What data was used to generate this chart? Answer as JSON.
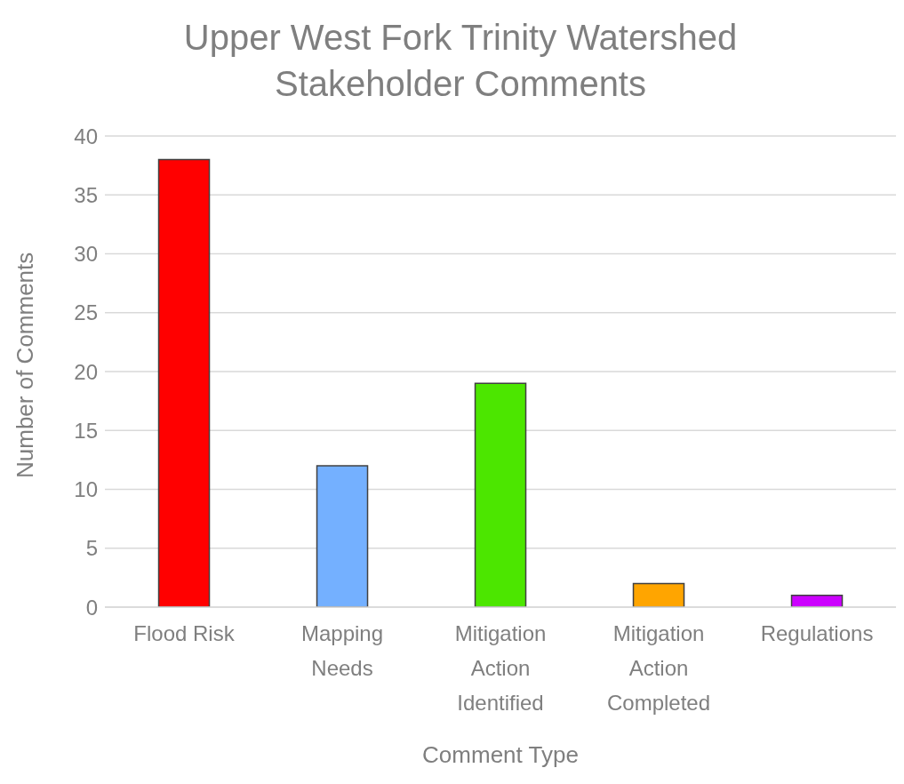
{
  "chart_data": {
    "type": "bar",
    "title": "Upper West Fork Trinity Watershed Stakeholder Comments",
    "xlabel": "Comment Type",
    "ylabel": "Number of Comments",
    "categories": [
      "Flood Risk",
      "Mapping Needs",
      "Mitigation Action Identified",
      "Mitigation Action Completed",
      "Regulations"
    ],
    "values": [
      38,
      12,
      19,
      2,
      1
    ],
    "colors": [
      "#ff0000",
      "#74b0ff",
      "#4ce600",
      "#ffa500",
      "#cc00ff"
    ],
    "ylim": [
      0,
      40
    ],
    "yticks": [
      0,
      5,
      10,
      15,
      20,
      25,
      30,
      35,
      40
    ],
    "grid": "y",
    "legend": false
  }
}
